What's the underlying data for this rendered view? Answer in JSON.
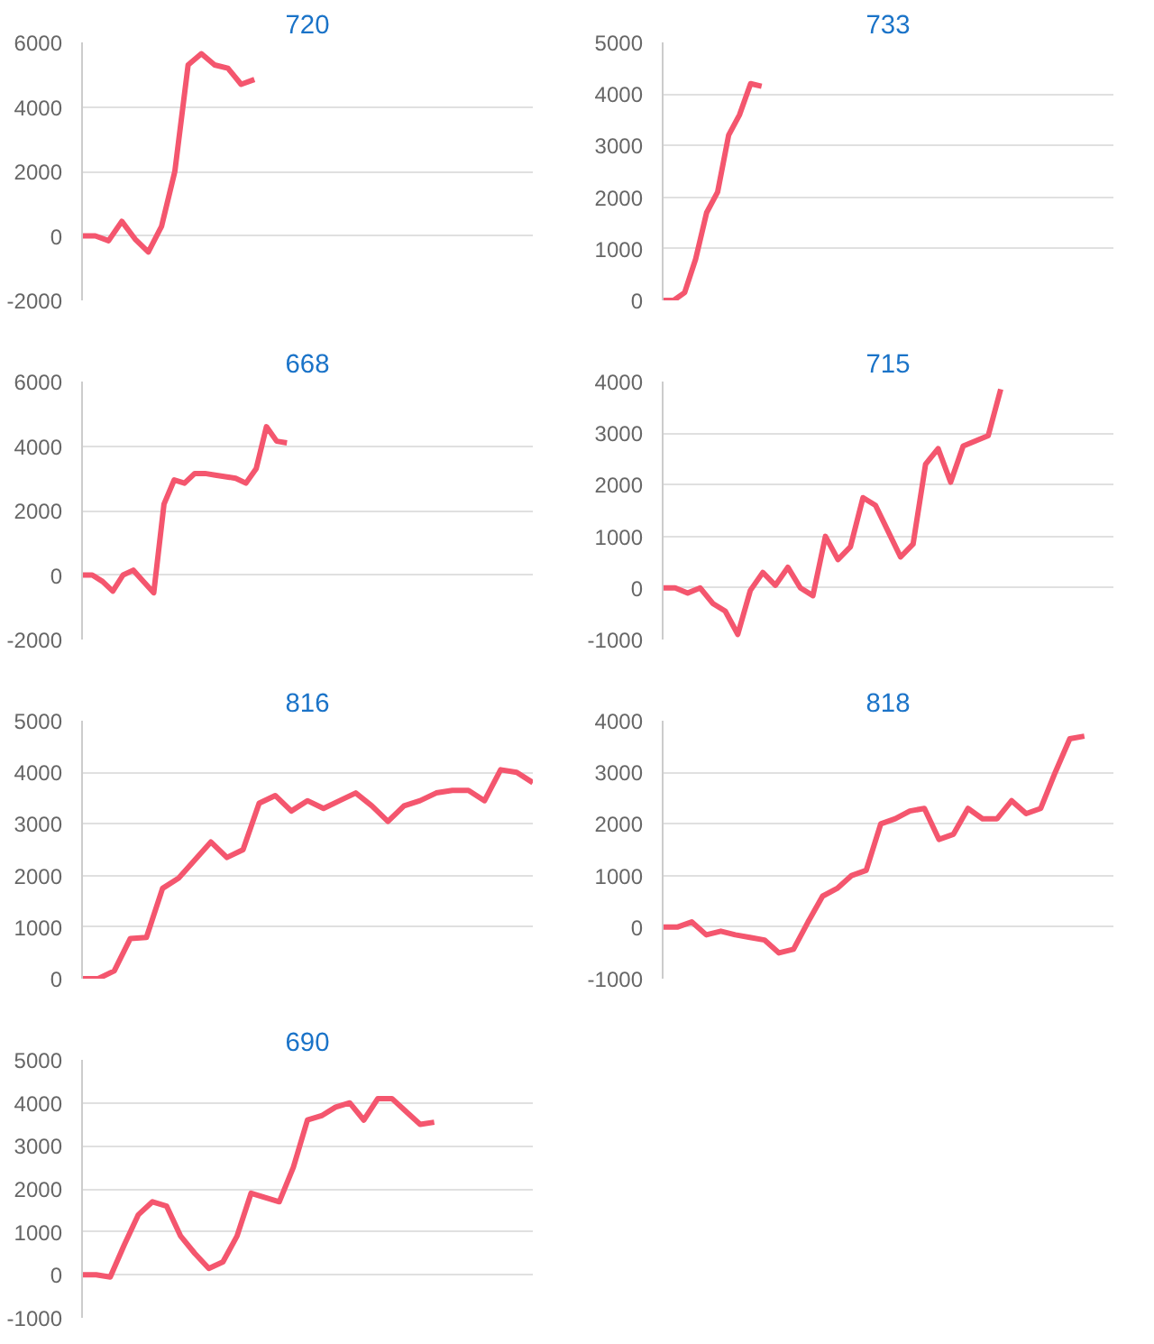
{
  "chart_data": [
    {
      "type": "line",
      "title": "720",
      "categories": [
        null,
        null,
        null,
        null,
        null,
        null,
        null,
        null,
        null,
        null,
        null,
        null,
        null,
        null,
        null,
        null,
        null,
        null,
        null,
        null,
        null,
        null,
        null,
        null,
        null,
        null,
        null,
        null,
        null,
        null,
        null,
        null,
        null,
        null,
        null
      ],
      "values": [
        0,
        0,
        -150,
        450,
        -100,
        -500,
        300,
        2000,
        5300,
        5650,
        5300,
        5200,
        4700,
        4850,
        null,
        null,
        null,
        null,
        null,
        null,
        null,
        null,
        null,
        null,
        null,
        null,
        null,
        null,
        null,
        null,
        null,
        null,
        null,
        null,
        null
      ],
      "color": "#f4566e",
      "ylim": [
        -2000,
        6000
      ],
      "yticks": [
        -2000,
        0,
        2000,
        4000,
        6000
      ],
      "grid": "y",
      "tick_labels": "y"
    },
    {
      "type": "line",
      "title": "733",
      "categories": [
        null,
        null,
        null,
        null,
        null,
        null,
        null,
        null,
        null,
        null,
        null,
        null,
        null,
        null,
        null,
        null,
        null,
        null,
        null,
        null,
        null,
        null,
        null,
        null,
        null,
        null,
        null,
        null,
        null,
        null,
        null,
        null,
        null,
        null,
        null,
        null,
        null,
        null,
        null,
        null,
        null,
        null
      ],
      "values": [
        0,
        0,
        150,
        800,
        1700,
        2100,
        3200,
        3600,
        4200,
        4150,
        null,
        null,
        null,
        null,
        null,
        null,
        null,
        null,
        null,
        null,
        null,
        null,
        null,
        null,
        null,
        null,
        null,
        null,
        null,
        null,
        null,
        null,
        null,
        null,
        null,
        null,
        null,
        null,
        null,
        null,
        null,
        null
      ],
      "color": "#f4566e",
      "ylim": [
        0,
        5000
      ],
      "yticks": [
        0,
        1000,
        2000,
        3000,
        4000,
        5000
      ],
      "grid": "y",
      "tick_labels": "y"
    },
    {
      "type": "line",
      "title": "668",
      "categories": [
        null,
        null,
        null,
        null,
        null,
        null,
        null,
        null,
        null,
        null,
        null,
        null,
        null,
        null,
        null,
        null,
        null,
        null,
        null,
        null,
        null,
        null,
        null,
        null,
        null,
        null,
        null,
        null,
        null,
        null,
        null,
        null,
        null,
        null,
        null,
        null,
        null,
        null,
        null,
        null,
        null,
        null,
        null,
        null,
        null
      ],
      "values": [
        0,
        0,
        -200,
        -500,
        0,
        150,
        -200,
        -550,
        2200,
        2950,
        2850,
        3150,
        3150,
        3100,
        3050,
        3000,
        2850,
        3300,
        4600,
        4150,
        4100,
        null,
        null,
        null,
        null,
        null,
        null,
        null,
        null,
        null,
        null,
        null,
        null,
        null,
        null,
        null,
        null,
        null,
        null,
        null,
        null,
        null,
        null,
        null,
        null
      ],
      "color": "#f4566e",
      "ylim": [
        -2000,
        6000
      ],
      "yticks": [
        -2000,
        0,
        2000,
        4000,
        6000
      ],
      "grid": "y",
      "tick_labels": "y"
    },
    {
      "type": "line",
      "title": "715",
      "categories": [
        null,
        null,
        null,
        null,
        null,
        null,
        null,
        null,
        null,
        null,
        null,
        null,
        null,
        null,
        null,
        null,
        null,
        null,
        null,
        null,
        null,
        null,
        null,
        null,
        null,
        null,
        null,
        null,
        null,
        null,
        null,
        null,
        null,
        null,
        null,
        null,
        null
      ],
      "values": [
        0,
        0,
        -100,
        0,
        -300,
        -450,
        -900,
        -50,
        300,
        50,
        400,
        0,
        -150,
        1000,
        550,
        800,
        1750,
        1600,
        1100,
        600,
        850,
        2400,
        2700,
        2050,
        2750,
        2850,
        2950,
        3850,
        null,
        null,
        null,
        null,
        null,
        null,
        null,
        null,
        null
      ],
      "color": "#f4566e",
      "ylim": [
        -1000,
        4000
      ],
      "yticks": [
        -1000,
        0,
        1000,
        2000,
        3000,
        4000
      ],
      "grid": "y",
      "tick_labels": "y"
    },
    {
      "type": "line",
      "title": "816",
      "categories": [
        null,
        null,
        null,
        null,
        null,
        null,
        null,
        null,
        null,
        null,
        null,
        null,
        null,
        null,
        null,
        null,
        null,
        null,
        null,
        null,
        null,
        null,
        null,
        null,
        null,
        null,
        null,
        null,
        null
      ],
      "values": [
        0,
        0,
        150,
        780,
        800,
        1750,
        1950,
        2300,
        2650,
        2350,
        2500,
        3400,
        3550,
        3250,
        3450,
        3300,
        3450,
        3600,
        3350,
        3050,
        3350,
        3450,
        3600,
        3650,
        3650,
        3450,
        4050,
        4000,
        3800
      ],
      "color": "#f4566e",
      "ylim": [
        0,
        5000
      ],
      "yticks": [
        0,
        1000,
        2000,
        3000,
        4000,
        5000
      ],
      "grid": "y",
      "tick_labels": "y"
    },
    {
      "type": "line",
      "title": "818",
      "categories": [
        null,
        null,
        null,
        null,
        null,
        null,
        null,
        null,
        null,
        null,
        null,
        null,
        null,
        null,
        null,
        null,
        null,
        null,
        null,
        null,
        null,
        null,
        null,
        null,
        null,
        null,
        null,
        null,
        null,
        null,
        null,
        null
      ],
      "values": [
        0,
        0,
        100,
        -150,
        -80,
        -150,
        -200,
        -250,
        -500,
        -430,
        100,
        600,
        750,
        1000,
        1100,
        2000,
        2100,
        2250,
        2300,
        1700,
        1800,
        2300,
        2100,
        2100,
        2450,
        2200,
        2300,
        3000,
        3650,
        3700,
        null,
        null
      ],
      "color": "#f4566e",
      "ylim": [
        -1000,
        4000
      ],
      "yticks": [
        -1000,
        0,
        1000,
        2000,
        3000,
        4000
      ],
      "grid": "y",
      "tick_labels": "y"
    },
    {
      "type": "line",
      "title": "690",
      "categories": [
        null,
        null,
        null,
        null,
        null,
        null,
        null,
        null,
        null,
        null,
        null,
        null,
        null,
        null,
        null,
        null,
        null,
        null,
        null,
        null,
        null,
        null,
        null,
        null,
        null,
        null,
        null,
        null,
        null,
        null,
        null,
        null,
        null
      ],
      "values": [
        0,
        0,
        -50,
        700,
        1400,
        1700,
        1600,
        900,
        500,
        150,
        300,
        900,
        1900,
        1800,
        1700,
        2500,
        3600,
        3700,
        3900,
        4000,
        3600,
        4100,
        4100,
        3800,
        3500,
        3550,
        null,
        null,
        null,
        null,
        null,
        null,
        null
      ],
      "color": "#f4566e",
      "ylim": [
        -1000,
        5000
      ],
      "yticks": [
        -1000,
        0,
        1000,
        2000,
        3000,
        4000,
        5000
      ],
      "grid": "y",
      "tick_labels": "y"
    }
  ]
}
